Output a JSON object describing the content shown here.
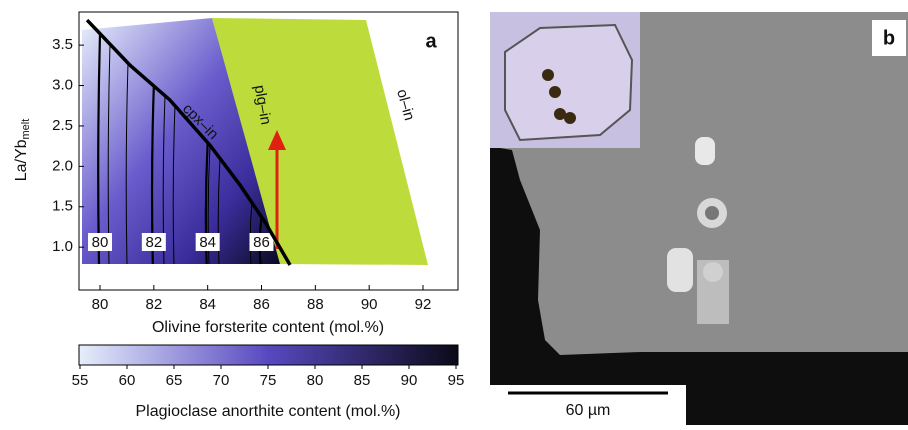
{
  "chart_data": {
    "type": "line",
    "panel_label": "a",
    "xlabel": "Olivine forsterite content (mol.%)",
    "ylabel": "La/Yb",
    "ylabel_sub": "melt",
    "xlim": [
      79.22,
      93.3
    ],
    "ylim": [
      0.47,
      3.91
    ],
    "xticks": [
      80,
      82,
      84,
      86,
      88,
      90,
      92
    ],
    "yticks": [
      {
        "value": 1,
        "label": "1.0"
      },
      1.5,
      {
        "value": 2,
        "label": "2.0"
      },
      2.5,
      {
        "value": 3,
        "label": "3.0"
      },
      3.5
    ],
    "series": [
      {
        "name": "cpx–in",
        "color": "#000000",
        "x": [
          79.52,
          81.12,
          82.6,
          84.09,
          85.2,
          86.13,
          87.06
        ],
        "values": [
          3.81,
          3.25,
          2.82,
          2.26,
          1.77,
          1.31,
          0.78
        ]
      }
    ],
    "region_labels": [
      "plg–in",
      "ol–in"
    ],
    "contour_labels": [
      80,
      82,
      84,
      86
    ],
    "colorbar": {
      "label": "Plagioclase anorthite content (mol.%)",
      "lim": [
        55,
        95
      ],
      "ticks": [
        55,
        60,
        65,
        70,
        75,
        80,
        85,
        90,
        95
      ],
      "colors": [
        "#e6eefb",
        "#5848c0",
        "#0a0a18"
      ]
    }
  },
  "photo": {
    "panel_label": "b",
    "scale_bar": "60 µm"
  }
}
